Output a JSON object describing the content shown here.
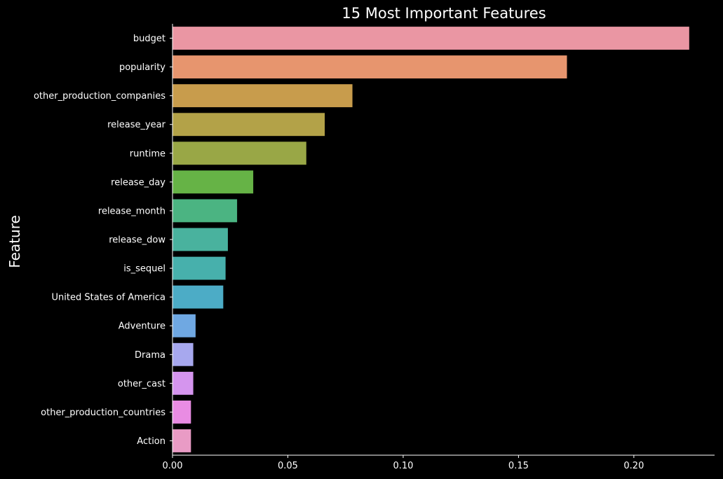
{
  "chart_data": {
    "type": "bar",
    "orientation": "horizontal",
    "title": "15 Most Important Features",
    "xlabel": "",
    "ylabel": "Feature",
    "xlim": [
      0,
      0.235
    ],
    "xticks": [
      0.0,
      0.05,
      0.1,
      0.15,
      0.2
    ],
    "xtick_labels": [
      "0.00",
      "0.05",
      "0.10",
      "0.15",
      "0.20"
    ],
    "grid": false,
    "categories": [
      "budget",
      "popularity",
      "other_production_companies",
      "release_year",
      "runtime",
      "release_day",
      "release_month",
      "release_dow",
      "is_sequel",
      "United States of America",
      "Adventure",
      "Drama",
      "other_cast",
      "other_production_countries",
      "Action"
    ],
    "values": [
      0.224,
      0.171,
      0.078,
      0.066,
      0.058,
      0.035,
      0.028,
      0.024,
      0.023,
      0.022,
      0.01,
      0.009,
      0.009,
      0.008,
      0.008
    ],
    "colors": [
      "#ea96a3",
      "#e7956e",
      "#c89c4c",
      "#b3a248",
      "#99a746",
      "#66b346",
      "#4bb482",
      "#49b29e",
      "#47b0ac",
      "#4cacc6",
      "#6fa8e2",
      "#a7a8ee",
      "#d595ee",
      "#e98ce3",
      "#e99bc5"
    ]
  }
}
